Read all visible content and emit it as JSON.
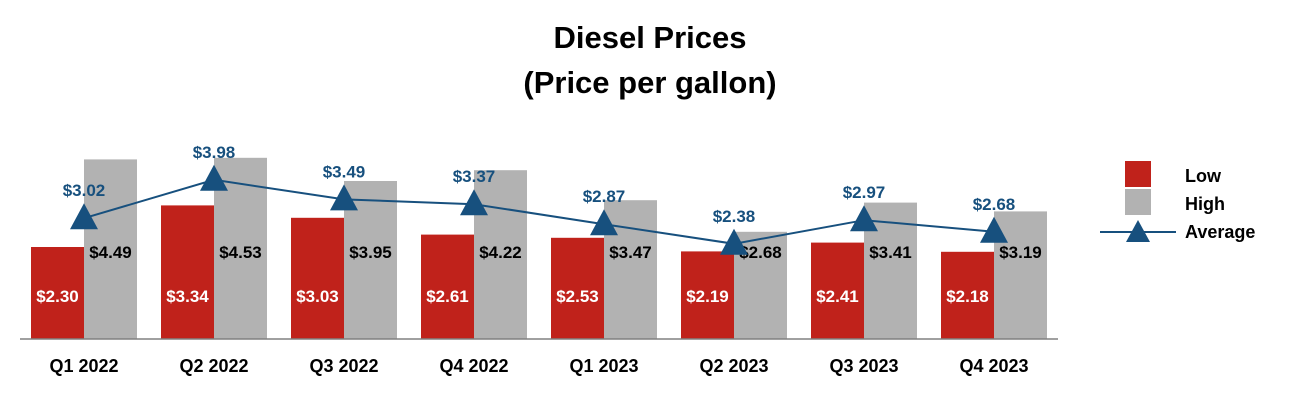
{
  "chart_data": {
    "type": "bar",
    "title_lines": [
      "Diesel Prices",
      "(Price per gallon)"
    ],
    "categories": [
      "Q1 2022",
      "Q2 2022",
      "Q3 2022",
      "Q4 2022",
      "Q1 2023",
      "Q2 2023",
      "Q3 2023",
      "Q4 2023"
    ],
    "series": [
      {
        "name": "Low",
        "kind": "bar",
        "color": "#c0221b",
        "values": [
          2.3,
          3.34,
          3.03,
          2.61,
          2.53,
          2.19,
          2.41,
          2.18
        ],
        "labels": [
          "$2.30",
          "$3.34",
          "$3.03",
          "$2.61",
          "$2.53",
          "$2.19",
          "$2.41",
          "$2.18"
        ]
      },
      {
        "name": "High",
        "kind": "bar",
        "color": "#b2b2b2",
        "values": [
          4.49,
          4.53,
          3.95,
          4.22,
          3.47,
          2.68,
          3.41,
          3.19
        ],
        "labels": [
          "$4.49",
          "$4.53",
          "$3.95",
          "$4.22",
          "$3.47",
          "$2.68",
          "$3.41",
          "$3.19"
        ]
      },
      {
        "name": "Average",
        "kind": "line",
        "marker": "triangle",
        "color": "#17507e",
        "values": [
          3.02,
          3.98,
          3.49,
          3.37,
          2.87,
          2.38,
          2.97,
          2.68
        ],
        "labels": [
          "$3.02",
          "$3.98",
          "$3.49",
          "$3.37",
          "$2.87",
          "$2.38",
          "$2.97",
          "$2.68"
        ]
      }
    ],
    "legend_position": "right",
    "ylim": [
      0,
      5
    ],
    "grid": false,
    "xlabel": "",
    "ylabel": ""
  }
}
